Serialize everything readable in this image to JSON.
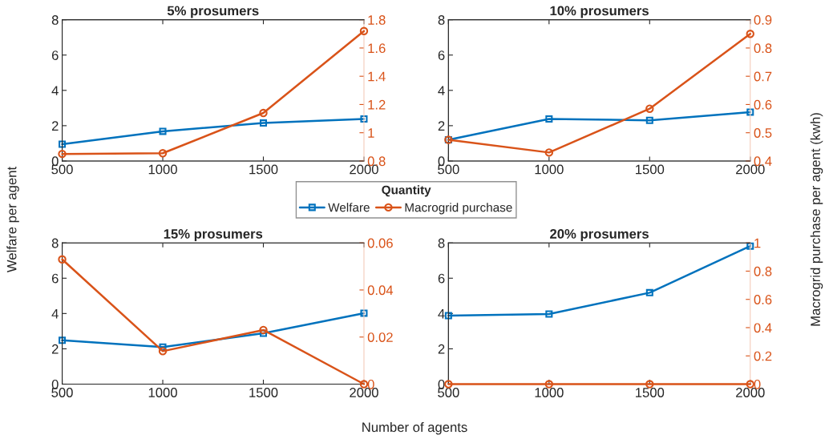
{
  "chart_data": [
    {
      "type": "line",
      "title": "5% prosumers",
      "ylabel": "Welfare per agent",
      "xlabel": "Number of agents",
      "y2label": "Macrogrid purchase per agent (kwh)",
      "legend_title": "Quantity",
      "legend": "center",
      "grid": false,
      "x": [
        500,
        1000,
        1500,
        2000
      ],
      "xlim": [
        500,
        2000
      ],
      "xticks": [
        500,
        1000,
        1500,
        2000
      ],
      "ylim": [
        0,
        8
      ],
      "yticks": [
        0,
        2,
        4,
        6,
        8
      ],
      "y2lim": [
        0.8,
        1.8
      ],
      "y2ticks": [
        0.8,
        1,
        1.2,
        1.4,
        1.6,
        1.8
      ],
      "series": [
        {
          "name": "Welfare",
          "color": "#0072bd",
          "marker": "square",
          "values": [
            0.95,
            1.68,
            2.15,
            2.38
          ]
        },
        {
          "name": "Macrogrid purchase",
          "color": "#d95319",
          "marker": "circle",
          "axis": "y2",
          "values": [
            0.85,
            0.855,
            1.14,
            1.72
          ]
        }
      ]
    },
    {
      "type": "line",
      "title": "10% prosumers",
      "grid": false,
      "x": [
        500,
        1000,
        1500,
        2000
      ],
      "xlim": [
        500,
        2000
      ],
      "xticks": [
        500,
        1000,
        1500,
        2000
      ],
      "ylim": [
        0,
        8
      ],
      "yticks": [
        0,
        2,
        4,
        6,
        8
      ],
      "y2lim": [
        0.4,
        0.9
      ],
      "y2ticks": [
        0.4,
        0.5,
        0.6,
        0.7,
        0.8,
        0.9
      ],
      "series": [
        {
          "color": "#0072bd",
          "marker": "square",
          "values": [
            1.2,
            2.38,
            2.3,
            2.77
          ]
        },
        {
          "color": "#d95319",
          "marker": "circle",
          "axis": "y2",
          "values": [
            0.475,
            0.43,
            0.585,
            0.85
          ]
        }
      ]
    },
    {
      "type": "line",
      "title": "15% prosumers",
      "grid": false,
      "x": [
        500,
        1000,
        1500,
        2000
      ],
      "xlim": [
        500,
        2000
      ],
      "xticks": [
        500,
        1000,
        1500,
        2000
      ],
      "ylim": [
        0,
        8
      ],
      "yticks": [
        0,
        2,
        4,
        6,
        8
      ],
      "y2lim": [
        0,
        0.06
      ],
      "y2ticks": [
        0,
        0.02,
        0.04,
        0.06
      ],
      "series": [
        {
          "color": "#0072bd",
          "marker": "square",
          "values": [
            2.48,
            2.1,
            2.88,
            4.02
          ]
        },
        {
          "color": "#d95319",
          "marker": "circle",
          "axis": "y2",
          "values": [
            0.053,
            0.014,
            0.023,
            0
          ]
        }
      ]
    },
    {
      "type": "line",
      "title": "20% prosumers",
      "grid": false,
      "x": [
        500,
        1000,
        1500,
        2000
      ],
      "xlim": [
        500,
        2000
      ],
      "xticks": [
        500,
        1000,
        1500,
        2000
      ],
      "ylim": [
        0,
        8
      ],
      "yticks": [
        0,
        2,
        4,
        6,
        8
      ],
      "y2lim": [
        0,
        1
      ],
      "y2ticks": [
        0,
        0.2,
        0.4,
        0.6,
        0.8,
        1
      ],
      "series": [
        {
          "color": "#0072bd",
          "marker": "square",
          "values": [
            3.88,
            3.97,
            5.18,
            7.82
          ]
        },
        {
          "color": "#d95319",
          "marker": "circle",
          "axis": "y2",
          "values": [
            0,
            0,
            0,
            0
          ]
        }
      ]
    }
  ]
}
